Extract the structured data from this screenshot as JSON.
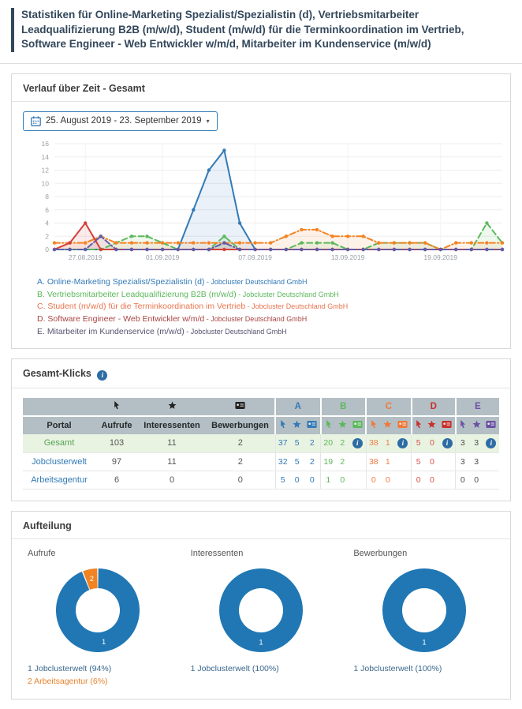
{
  "page_title": "Statistiken für Online-Marketing Spezialist/Spezialistin (d), Vertriebsmitarbeiter Leadqualifizierung B2B (m/w/d), Student (m/w/d) für die Terminkoordination im Vertrieb, Software Engineer - Web Entwickler w/m/d, Mitarbeiter im Kundenservice (m/w/d)",
  "timeline_panel": {
    "title": "Verlauf über Zeit - Gesamt",
    "date_range": "25. August 2019 - 23. September 2019",
    "dropdown_icon": "▾"
  },
  "chart_data": {
    "type": "line",
    "title": "Verlauf über Zeit - Gesamt",
    "grid": true,
    "legend_position": "bottom",
    "ylim": [
      0,
      16
    ],
    "y_ticks": [
      0,
      2,
      4,
      6,
      8,
      10,
      12,
      14,
      16
    ],
    "x": [
      "25.08.2019",
      "26.08.2019",
      "27.08.2019",
      "28.08.2019",
      "29.08.2019",
      "30.08.2019",
      "31.08.2019",
      "01.09.2019",
      "02.09.2019",
      "03.09.2019",
      "04.09.2019",
      "05.09.2019",
      "06.09.2019",
      "07.09.2019",
      "08.09.2019",
      "09.09.2019",
      "10.09.2019",
      "11.09.2019",
      "12.09.2019",
      "13.09.2019",
      "14.09.2019",
      "15.09.2019",
      "16.09.2019",
      "17.09.2019",
      "18.09.2019",
      "19.09.2019",
      "20.09.2019",
      "21.09.2019",
      "22.09.2019",
      "23.09.2019"
    ],
    "x_tick_labels": [
      "27.08.2019",
      "01.09.2019",
      "07.09.2019",
      "13.09.2019",
      "19.09.2019"
    ],
    "x_tick_idx": [
      2,
      7,
      13,
      19,
      25
    ],
    "series": [
      {
        "letter": "A",
        "label": "Online-Marketing Spezialist/Spezialistin (d)",
        "company": "Jobcluster Deutschland GmbH",
        "color": "#337ab7",
        "text_color": "#337ab7",
        "dash": "",
        "values": [
          0,
          0,
          0,
          0,
          0,
          0,
          0,
          0,
          0,
          6,
          12,
          15,
          4,
          0,
          0,
          0,
          0,
          0,
          0,
          0,
          0,
          0,
          0,
          0,
          0,
          0,
          0,
          0,
          0,
          0
        ]
      },
      {
        "letter": "B",
        "label": "Vertriebsmitarbeiter Leadqualifizierung B2B (m/w/d)",
        "company": "Jobcluster Deutschland GmbH",
        "color": "#5cb85c",
        "text_color": "#5cb85c",
        "dash": "7,4",
        "values": [
          0,
          0,
          0,
          0,
          1,
          2,
          2,
          1,
          0,
          0,
          0,
          2,
          0,
          0,
          0,
          0,
          1,
          1,
          1,
          0,
          0,
          1,
          1,
          1,
          1,
          0,
          0,
          0,
          4,
          1
        ]
      },
      {
        "letter": "C",
        "label": "Student (m/w/d) für die Terminkoordination im Vertrieb",
        "company": "Jobcluster Deutschland GmbH",
        "color": "#f58220",
        "text_color": "#e8744f",
        "dash": "7,3,1.5,3",
        "values": [
          1,
          1,
          1,
          2,
          1,
          1,
          1,
          1,
          1,
          1,
          1,
          1,
          1,
          1,
          1,
          2,
          3,
          3,
          2,
          2,
          2,
          1,
          1,
          1,
          1,
          0,
          1,
          1,
          1,
          1
        ]
      },
      {
        "letter": "D",
        "label": "Software Engineer - Web Entwickler w/m/d",
        "company": "Jobcluster Deutschland GmbH",
        "color": "#d43f3a",
        "text_color": "#a94442",
        "dash": "",
        "values": [
          0,
          1,
          4,
          0,
          0,
          0,
          0,
          0,
          0,
          0,
          0,
          0,
          0,
          0,
          0,
          0,
          0,
          0,
          0,
          0,
          0,
          0,
          0,
          0,
          0,
          0,
          0,
          0,
          0,
          0
        ]
      },
      {
        "letter": "E",
        "label": "Mitarbeiter im Kundenservice (m/w/d)",
        "company": "Jobcluster Deutschland GmbH",
        "color": "#605ca8",
        "text_color": "#55536e",
        "dash": "7,3,1.5,3",
        "values": [
          0,
          0,
          0,
          2,
          0,
          0,
          0,
          0,
          0,
          0,
          0,
          1,
          0,
          0,
          0,
          0,
          0,
          0,
          0,
          0,
          0,
          0,
          0,
          0,
          0,
          0,
          0,
          0,
          0,
          0
        ]
      }
    ]
  },
  "clicks_panel": {
    "title": "Gesamt-Klicks",
    "table": {
      "portal_header": "Portal",
      "metric_columns": [
        {
          "label": "Aufrufe",
          "icon": "cursor-icon"
        },
        {
          "label": "Interessenten",
          "icon": "star-icon"
        },
        {
          "label": "Bewerbungen",
          "icon": "application-icon"
        }
      ],
      "job_columns": [
        {
          "letter": "A",
          "color": "#337ab7",
          "value_color": "#337ab7"
        },
        {
          "letter": "B",
          "color": "#5cb85c",
          "value_color": "#5cb85c"
        },
        {
          "letter": "C",
          "color": "#f0793a",
          "value_color": "#ef7c45"
        },
        {
          "letter": "D",
          "color": "#c9302c",
          "value_color": "#d9534f"
        },
        {
          "letter": "E",
          "color": "#6a51a3",
          "value_color": "#4d4d4d"
        }
      ],
      "rows": [
        {
          "portal": "Gesamt",
          "portal_color": "#56a456",
          "highlight": true,
          "metrics": [
            "103",
            "11",
            "2"
          ],
          "jobs": [
            [
              "37",
              "5",
              "2"
            ],
            [
              "20",
              "2",
              "info"
            ],
            [
              "38",
              "1",
              "info"
            ],
            [
              "5",
              "0",
              "info"
            ],
            [
              "3",
              "3",
              "info"
            ]
          ]
        },
        {
          "portal": "Jobclusterwelt",
          "portal_color": "#337ab7",
          "highlight": false,
          "metrics": [
            "97",
            "11",
            "2"
          ],
          "jobs": [
            [
              "32",
              "5",
              "2"
            ],
            [
              "19",
              "2",
              ""
            ],
            [
              "38",
              "1",
              ""
            ],
            [
              "5",
              "0",
              ""
            ],
            [
              "3",
              "3",
              ""
            ]
          ]
        },
        {
          "portal": "Arbeitsagentur",
          "portal_color": "#337ab7",
          "highlight": false,
          "metrics": [
            "6",
            "0",
            "0"
          ],
          "jobs": [
            [
              "5",
              "0",
              "0"
            ],
            [
              "1",
              "0",
              ""
            ],
            [
              "0",
              "0",
              ""
            ],
            [
              "0",
              "0",
              ""
            ],
            [
              "0",
              "0",
              ""
            ]
          ]
        }
      ]
    }
  },
  "distribution_panel": {
    "title": "Aufteilung",
    "donuts": [
      {
        "title": "Aufrufe",
        "slices": [
          {
            "label": "1",
            "name": "Jobclusterwelt",
            "pct": 94,
            "color": "#2077b4"
          },
          {
            "label": "2",
            "name": "Arbeitsagentur",
            "pct": 6,
            "color": "#f28322"
          }
        ],
        "legend": [
          {
            "text": "1 Jobclusterwelt (94%)",
            "color": "#38678c"
          },
          {
            "text": "2 Arbeitsagentur (6%)",
            "color": "#e8832c"
          }
        ]
      },
      {
        "title": "Interessenten",
        "slices": [
          {
            "label": "1",
            "name": "Jobclusterwelt",
            "pct": 100,
            "color": "#2077b4"
          }
        ],
        "legend": [
          {
            "text": "1 Jobclusterwelt (100%)",
            "color": "#38678c"
          }
        ]
      },
      {
        "title": "Bewerbungen",
        "slices": [
          {
            "label": "1",
            "name": "Jobclusterwelt",
            "pct": 100,
            "color": "#2077b4"
          }
        ],
        "legend": [
          {
            "text": "1 Jobclusterwelt (100%)",
            "color": "#38678c"
          }
        ]
      }
    ]
  }
}
